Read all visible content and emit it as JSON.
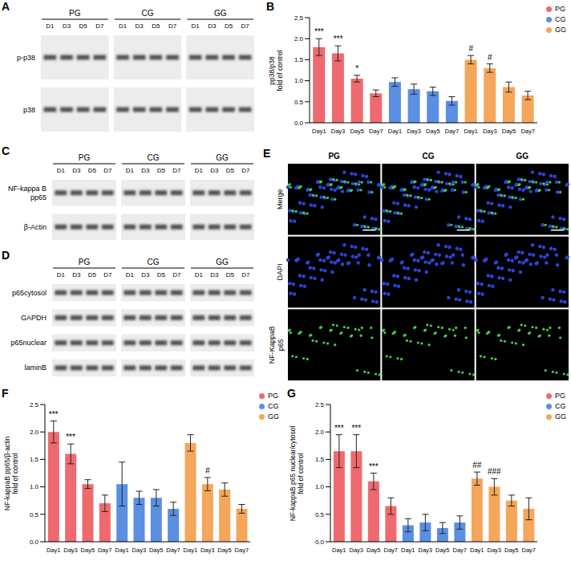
{
  "blots": [
    {
      "panel": "A",
      "groups": [
        "PG",
        "CG",
        "GG"
      ],
      "lanes": [
        "D1",
        "D3",
        "D5",
        "D7"
      ],
      "rows": [
        "p-p38",
        "p38"
      ]
    },
    {
      "panel": "C",
      "groups": [
        "PG",
        "CG",
        "GG"
      ],
      "lanes": [
        "D1",
        "D3",
        "D5",
        "D7"
      ],
      "rows": [
        "NF-kappa B\npp65",
        "β-Actin"
      ]
    },
    {
      "panel": "D",
      "groups": [
        "PG",
        "CG",
        "GG"
      ],
      "lanes": [
        "D1",
        "D3",
        "D5",
        "D7"
      ],
      "rows": [
        "p65cytosol",
        "GAPDH",
        "p65nuclear",
        "laminB"
      ]
    }
  ],
  "image_panel": {
    "panel": "E",
    "columns": [
      "PG",
      "CG",
      "GG"
    ],
    "rows": [
      "Merge",
      "DAPI",
      "NF-KappaB\np65"
    ]
  },
  "chart_data": [
    {
      "panel": "B",
      "type": "bar",
      "y_label": "pp38/p38\nfold of control",
      "categories": [
        "Day1",
        "Day3",
        "Day5",
        "Day7"
      ],
      "series": [
        {
          "name": "PG",
          "color": "#ee6a6e",
          "values": [
            1.8,
            1.65,
            1.05,
            0.7
          ],
          "errors": [
            0.2,
            0.18,
            0.08,
            0.08
          ],
          "significance": [
            "***",
            "***",
            "*",
            null
          ]
        },
        {
          "name": "CG",
          "color": "#5a8fe2",
          "values": [
            0.97,
            0.8,
            0.75,
            0.52
          ],
          "errors": [
            0.1,
            0.12,
            0.1,
            0.1
          ],
          "significance": [
            null,
            null,
            null,
            null
          ]
        },
        {
          "name": "GG",
          "color": "#f5a65a",
          "values": [
            1.5,
            1.3,
            0.85,
            0.65
          ],
          "errors": [
            0.1,
            0.1,
            0.12,
            0.1
          ],
          "significance": [
            "#",
            "#",
            null,
            null
          ]
        }
      ],
      "ylim": [
        0,
        2.5
      ],
      "yticks": [
        {
          "value": 0,
          "label": "0.0"
        },
        0.5,
        {
          "value": 1,
          "label": "1.0"
        },
        1.5,
        {
          "value": 2,
          "label": "2.0"
        },
        2.5
      ],
      "legend": "upper right"
    },
    {
      "panel": "F",
      "type": "bar",
      "y_label": "NF-kappaB pp65/β-actin\nfold of control",
      "categories": [
        "Day1",
        "Day3",
        "Day5",
        "Day7"
      ],
      "series": [
        {
          "name": "PG",
          "color": "#ee6a6e",
          "values": [
            2.0,
            1.6,
            1.05,
            0.7
          ],
          "errors": [
            0.2,
            0.18,
            0.08,
            0.15
          ],
          "significance": [
            "***",
            "***",
            null,
            null
          ]
        },
        {
          "name": "CG",
          "color": "#5a8fe2",
          "values": [
            1.05,
            0.8,
            0.8,
            0.6
          ],
          "errors": [
            0.4,
            0.12,
            0.15,
            0.12
          ],
          "significance": [
            null,
            null,
            null,
            null
          ]
        },
        {
          "name": "GG",
          "color": "#f5a65a",
          "values": [
            1.8,
            1.05,
            0.95,
            0.6
          ],
          "errors": [
            0.15,
            0.12,
            0.12,
            0.08
          ],
          "significance": [
            null,
            "#",
            null,
            null
          ]
        }
      ],
      "ylim": [
        0,
        2.5
      ],
      "yticks": [
        {
          "value": 0,
          "label": "0.0"
        },
        0.5,
        {
          "value": 1,
          "label": "1.0"
        },
        1.5,
        {
          "value": 2,
          "label": "2.0"
        },
        2.5
      ],
      "legend": "upper right"
    },
    {
      "panel": "G",
      "type": "bar",
      "y_label": "NF-kappaB p65 nuclear/cytosol\nfold of control",
      "categories": [
        "Day1",
        "Day3",
        "Day5",
        "Day7"
      ],
      "series": [
        {
          "name": "PG",
          "color": "#ee6a6e",
          "values": [
            1.65,
            1.65,
            1.1,
            0.65
          ],
          "errors": [
            0.3,
            0.3,
            0.15,
            0.15
          ],
          "significance": [
            "***",
            "***",
            "***",
            null
          ]
        },
        {
          "name": "CG",
          "color": "#5a8fe2",
          "values": [
            0.3,
            0.35,
            0.25,
            0.35
          ],
          "errors": [
            0.12,
            0.15,
            0.1,
            0.12
          ],
          "significance": [
            null,
            null,
            null,
            null
          ]
        },
        {
          "name": "GG",
          "color": "#f5a65a",
          "values": [
            1.15,
            1.0,
            0.75,
            0.6
          ],
          "errors": [
            0.12,
            0.15,
            0.1,
            0.2
          ],
          "significance": [
            "##",
            "###",
            null,
            null
          ]
        }
      ],
      "ylim": [
        0,
        2.5
      ],
      "yticks": [
        {
          "value": 0,
          "label": "0.0"
        },
        0.5,
        {
          "value": 1,
          "label": "1.0"
        },
        1.5,
        {
          "value": 2,
          "label": "2.0"
        },
        2.5
      ],
      "legend": "upper right"
    }
  ]
}
